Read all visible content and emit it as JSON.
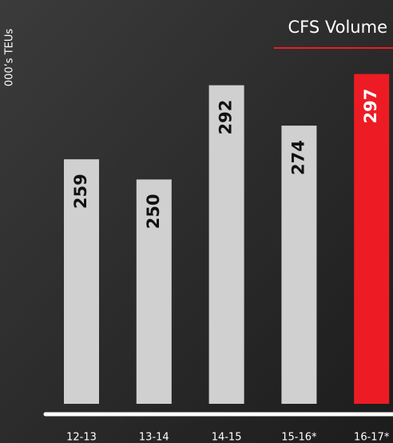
{
  "chart_data": {
    "type": "bar",
    "title": "CFS Volume",
    "y_label": "000’s TEUs",
    "categories": [
      "12-13",
      "13-14",
      "14-15",
      "15-16*",
      "16-17*"
    ],
    "values": [
      259,
      250,
      292,
      274,
      297
    ],
    "colors": [
      "#d0d0d0",
      "#d0d0d0",
      "#d0d0d0",
      "#d0d0d0",
      "#ed1c24"
    ],
    "ylim": [
      150,
      330
    ],
    "grid": false
  }
}
